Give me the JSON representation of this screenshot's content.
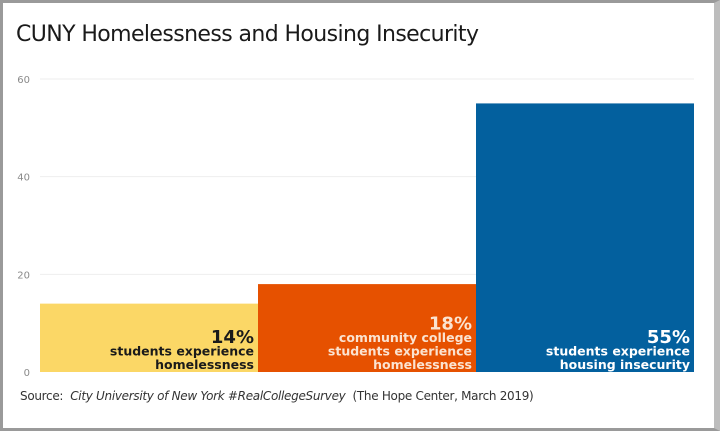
{
  "chart_data": {
    "type": "bar",
    "title": "CUNY Homelessness and Housing Insecurity",
    "xlabel": "",
    "ylabel": "",
    "ylim": [
      0,
      60
    ],
    "yticks": [
      0,
      20,
      40,
      60
    ],
    "ytick_labels": [
      "0",
      "20",
      "40",
      "60"
    ],
    "grid": true,
    "legend": "none",
    "categories": [
      "students experience homelessness",
      "community college students experience homelessness",
      "students experience housing insecurity"
    ],
    "values": [
      14,
      18,
      55
    ],
    "bars": [
      {
        "value": 14,
        "label": "14%",
        "lines": [
          "students experience",
          "homelessness"
        ],
        "color": "#fbd766",
        "text_color": "#1a1a1a"
      },
      {
        "value": 18,
        "label": "18%",
        "lines": [
          "community college",
          "students experience",
          "homelessness"
        ],
        "color": "#e65100",
        "text_color": "#fbe3d0"
      },
      {
        "value": 55,
        "label": "55%",
        "lines": [
          "students experience",
          "housing insecurity"
        ],
        "color": "#03609e",
        "text_color": "#ffffff"
      }
    ]
  },
  "source": {
    "prefix": "Source:",
    "italic": "City University of New York #RealCollegeSurvey",
    "suffix": "(The Hope Center, March 2019)"
  },
  "colors": {
    "gridline": "#eeeeee",
    "tick_text": "#8a8a8a",
    "frame_border": "#9a9a9a"
  }
}
